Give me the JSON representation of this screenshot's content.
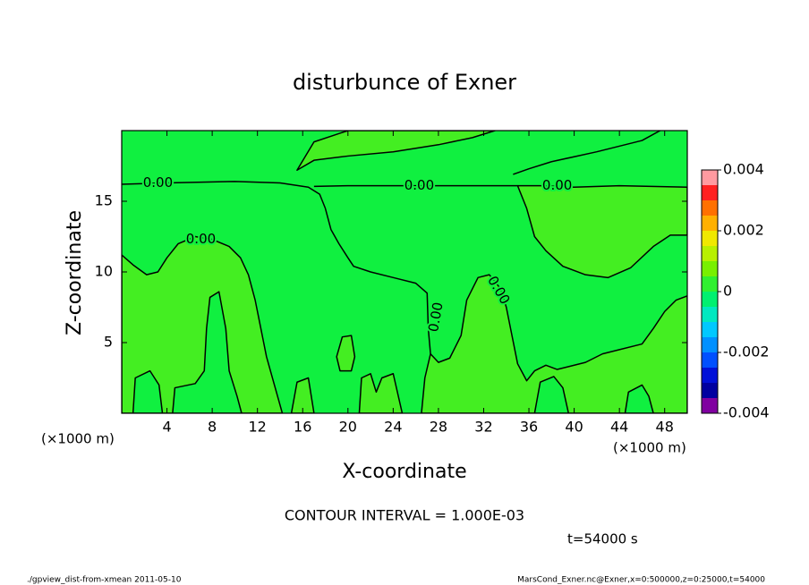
{
  "chart_data": {
    "type": "contour",
    "title": "disturbunce of Exner",
    "xlabel": "X-coordinate",
    "ylabel": "Z-coordinate",
    "x_unit": "(×1000 m)",
    "y_unit": "(×1000 m)",
    "xlim": [
      0,
      50
    ],
    "ylim": [
      0,
      20
    ],
    "xticks": [
      4,
      8,
      12,
      16,
      20,
      24,
      28,
      32,
      36,
      40,
      44,
      48
    ],
    "yticks": [
      5,
      10,
      15
    ],
    "background_color": "#10f040",
    "line_color": "#000000",
    "contours": [
      {
        "fill": "#44ee22",
        "x": [
          0,
          0,
          1,
          2.2,
          3.2,
          4,
          5,
          6.5,
          8,
          9.5,
          10.5,
          11.2,
          11.8,
          12.3,
          12.8,
          13.5,
          14.2
        ],
        "y": [
          0,
          11.2,
          10.5,
          9.8,
          10,
          11,
          12,
          12.5,
          12.3,
          11.8,
          11,
          9.8,
          8,
          6,
          4,
          2,
          0
        ]
      },
      {
        "fill": "#10f040",
        "x": [
          4.5,
          4.7,
          6.5,
          7.3,
          7.5,
          7.8,
          8.6,
          9.2,
          9.5,
          10.2,
          10.6
        ],
        "y": [
          0,
          1.8,
          2.1,
          3,
          6,
          8.2,
          8.6,
          6,
          3,
          1.2,
          0
        ]
      },
      {
        "fill": "#10f040",
        "x": [
          1,
          1.2,
          2.5,
          3.3,
          3.6
        ],
        "y": [
          0,
          2.5,
          3,
          2,
          0
        ]
      },
      {
        "fill": "#44ee22",
        "x": [
          26.5,
          26.8,
          27.3,
          28,
          29,
          30,
          30.5,
          31.5,
          32.5,
          33.5,
          34,
          34.5,
          35,
          35.8,
          36.5,
          37.5,
          38.5,
          39.5,
          41,
          42.5,
          44,
          46,
          47,
          48,
          49,
          50,
          50
        ],
        "y": [
          0,
          2.5,
          4.2,
          3.6,
          3.9,
          5.5,
          8,
          9.6,
          9.8,
          8.8,
          7.5,
          5.5,
          3.5,
          2.3,
          3,
          3.4,
          3.1,
          3.3,
          3.6,
          4.2,
          4.5,
          4.9,
          6,
          7.2,
          8,
          8.3,
          0
        ]
      },
      {
        "fill": "#10f040",
        "x": [
          36.5,
          37,
          38.2,
          39,
          39.5
        ],
        "y": [
          0,
          2.2,
          2.6,
          1.8,
          0
        ]
      },
      {
        "fill": "#10f040",
        "x": [
          44.5,
          44.8,
          46,
          46.6,
          47
        ],
        "y": [
          0,
          1.5,
          2,
          1.2,
          0
        ]
      },
      {
        "fill": "#44ee22",
        "x": [
          15,
          15.5,
          16.5,
          17
        ],
        "y": [
          0,
          2.2,
          2.5,
          0
        ]
      },
      {
        "fill": "#44ee22",
        "x": [
          21,
          21.2,
          22,
          22.5,
          23,
          24,
          24.8
        ],
        "y": [
          0,
          2.5,
          2.8,
          1.5,
          2.5,
          2.8,
          0
        ]
      },
      {
        "fill": "#44ee22",
        "x": [
          19,
          19.5,
          20.3,
          20.6,
          20.3,
          19.3,
          19
        ],
        "y": [
          4,
          5.4,
          5.5,
          4,
          3,
          3,
          4
        ]
      },
      {
        "fill": "#44ee22",
        "x": [
          35,
          35.8,
          36.5,
          37.5,
          39,
          41,
          43,
          45,
          47,
          48.5,
          50,
          50,
          44,
          40,
          37
        ],
        "y": [
          16.1,
          14.5,
          12.5,
          11.5,
          10.4,
          9.8,
          9.6,
          10.3,
          11.8,
          12.6,
          12.6,
          16,
          16.1,
          16,
          16.1
        ]
      },
      {
        "fill": "#44ee22",
        "x": [
          15.5,
          17,
          20,
          24,
          28,
          31,
          33,
          20,
          17
        ],
        "y": [
          17.2,
          17.9,
          18.2,
          18.5,
          19,
          19.5,
          20,
          20,
          19.2
        ]
      },
      {
        "fill": null,
        "x": [
          0,
          4,
          10,
          14,
          16.5,
          17.5,
          18,
          18.5,
          19.2,
          20,
          20.5,
          22,
          24,
          26,
          27,
          27.1,
          27.3
        ],
        "y": [
          16.2,
          16.3,
          16.4,
          16.3,
          16,
          15.5,
          14.5,
          13,
          12,
          11,
          10.4,
          10,
          9.6,
          9.2,
          8.5,
          6,
          4.2
        ]
      },
      {
        "fill": null,
        "x": [
          17,
          20,
          24,
          28,
          32,
          35
        ],
        "y": [
          16.05,
          16.1,
          16.1,
          16.1,
          16.1,
          16.1
        ]
      },
      {
        "fill": null,
        "x": [
          34.6,
          36,
          38,
          42,
          46,
          47.6
        ],
        "y": [
          16.9,
          17.3,
          17.8,
          18.5,
          19.3,
          20
        ]
      }
    ],
    "contour_labels": [
      "0.00",
      "0.00",
      "0.00",
      "0.00",
      "0.00",
      "0.00"
    ],
    "colorbar": {
      "levels": [
        -0.004,
        -0.0035,
        -0.003,
        -0.0025,
        -0.002,
        -0.0015,
        -0.001,
        -0.0005,
        0,
        0.0005,
        0.001,
        0.0015,
        0.002,
        0.0025,
        0.003,
        0.0035,
        0.004
      ],
      "colors": [
        "#8000a0",
        "#0000a0",
        "#0010d8",
        "#0050ff",
        "#0090ff",
        "#00c8ff",
        "#00e8c0",
        "#00f070",
        "#30f030",
        "#78f000",
        "#b8f000",
        "#f0e800",
        "#ffb000",
        "#ff7000",
        "#ff2020",
        "#ff9aa0"
      ],
      "ticks": [
        0.004,
        0.002,
        0,
        -0.002,
        -0.004
      ]
    },
    "contour_interval_text": "CONTOUR INTERVAL = 1.000E-03",
    "time_text": "t=54000 s",
    "footer_left": "./gpview_dist-from-xmean  2011-05-10",
    "footer_right": "MarsCond_Exner.nc@Exner,x=0:500000,z=0:25000,t=54000"
  }
}
